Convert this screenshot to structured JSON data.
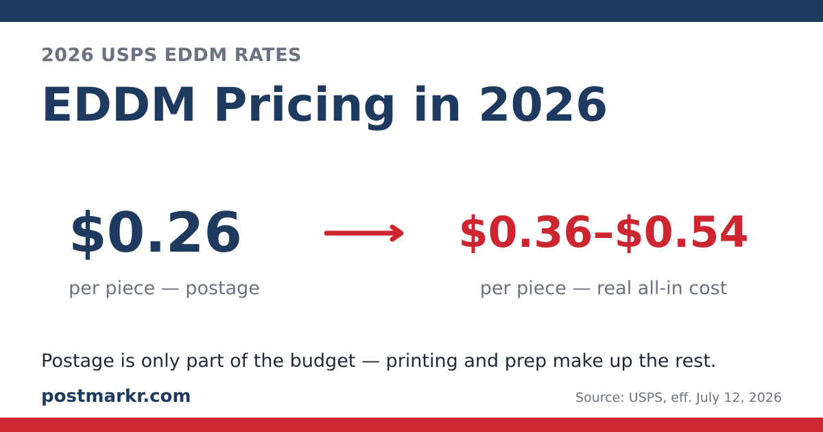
{
  "colors": {
    "navy": "#1f3a5f",
    "red": "#cc2630",
    "gray": "#6b7280",
    "dark_text": "#1f2937"
  },
  "header": {
    "eyebrow": "2026 USPS EDDM RATES",
    "title": "EDDM Pricing in 2026"
  },
  "comparison": {
    "postage": {
      "value": "$0.26",
      "caption": "per piece — postage"
    },
    "arrow_icon": "arrow-right-icon",
    "all_in": {
      "value": "$0.36–$0.54",
      "caption": "per piece — real all-in cost"
    }
  },
  "footer": {
    "tagline": "Postage is only part of the budget — printing and prep make up the rest.",
    "brand": "postmarkr.com",
    "source": "Source: USPS, eff. July 12, 2026"
  }
}
